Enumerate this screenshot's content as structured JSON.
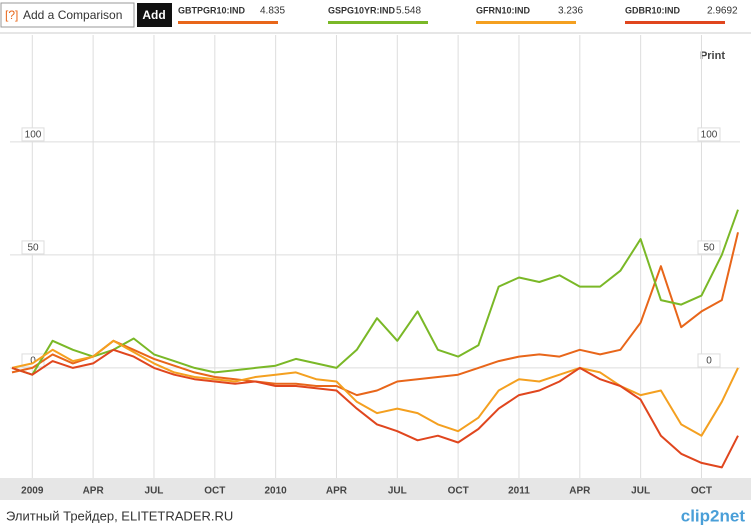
{
  "toolbar": {
    "help": "[?]",
    "input": "Add a Comparison",
    "button": "Add",
    "print": "Print"
  },
  "chart_data": {
    "type": "line",
    "x": [
      -1,
      0,
      1,
      2,
      3,
      4,
      5,
      6,
      7,
      8,
      9,
      10,
      11,
      12,
      13,
      14,
      15,
      16,
      17,
      18,
      19,
      20,
      21,
      22,
      23,
      24,
      25,
      26,
      27,
      28,
      29,
      30,
      31,
      32,
      33,
      34,
      34.8
    ],
    "xlim": [
      -1.1,
      34.9
    ],
    "xticks": [
      {
        "value": 0,
        "label": "2009"
      },
      {
        "value": 3,
        "label": "APR"
      },
      {
        "value": 6,
        "label": "JUL"
      },
      {
        "value": 9,
        "label": "OCT"
      },
      {
        "value": 12,
        "label": "2010"
      },
      {
        "value": 15,
        "label": "APR"
      },
      {
        "value": 18,
        "label": "JUL"
      },
      {
        "value": 21,
        "label": "OCT"
      },
      {
        "value": 24,
        "label": "2011"
      },
      {
        "value": 27,
        "label": "APR"
      },
      {
        "value": 30,
        "label": "JUL"
      },
      {
        "value": 33,
        "label": "OCT"
      }
    ],
    "ylim": [
      -48.7,
      147.3
    ],
    "yticks": [
      0,
      50,
      100
    ],
    "grid": true,
    "series": [
      {
        "name": "GBTPGR10:IND",
        "quote": 4.835,
        "color": "#e8661a",
        "values": [
          -2,
          0,
          6,
          2,
          5,
          12,
          8,
          4,
          1,
          -2,
          -4,
          -5,
          -6,
          -7,
          -7,
          -8,
          -8,
          -12,
          -10,
          -6,
          -5,
          -4,
          -3,
          0,
          3,
          5,
          6,
          5,
          8,
          6,
          8,
          20,
          45,
          18,
          25,
          30,
          60
        ]
      },
      {
        "name": "GSPG10YR:IND",
        "quote": 5.548,
        "color": "#7ab827",
        "values": [
          0,
          -3,
          12,
          8,
          5,
          8,
          13,
          6,
          3,
          0,
          -2,
          -1,
          0,
          1,
          4,
          2,
          0,
          8,
          22,
          12,
          25,
          8,
          5,
          10,
          36,
          40,
          38,
          41,
          36,
          36,
          43,
          57,
          30,
          28,
          32,
          50,
          70
        ]
      },
      {
        "name": "GFRN10:IND",
        "quote": 3.236,
        "color": "#f4a020",
        "values": [
          0,
          2,
          8,
          3,
          5,
          12,
          7,
          2,
          -2,
          -4,
          -5,
          -6,
          -4,
          -3,
          -2,
          -5,
          -6,
          -15,
          -20,
          -18,
          -20,
          -25,
          -28,
          -22,
          -10,
          -5,
          -6,
          -3,
          0,
          -2,
          -8,
          -12,
          -10,
          -25,
          -30,
          -15,
          0
        ]
      },
      {
        "name": "GDBR10:IND",
        "quote": 2.9692,
        "color": "#e0461e",
        "values": [
          0,
          -3,
          3,
          0,
          2,
          8,
          5,
          0,
          -3,
          -5,
          -6,
          -7,
          -6,
          -8,
          -8,
          -9,
          -10,
          -18,
          -25,
          -28,
          -32,
          -30,
          -33,
          -27,
          -18,
          -12,
          -10,
          -6,
          0,
          -5,
          -8,
          -14,
          -30,
          -38,
          -42,
          -44,
          -30
        ]
      }
    ]
  },
  "footer": {
    "source": "Элитный Трейдер, ELITETRADER.RU",
    "logo": "clip2net"
  }
}
